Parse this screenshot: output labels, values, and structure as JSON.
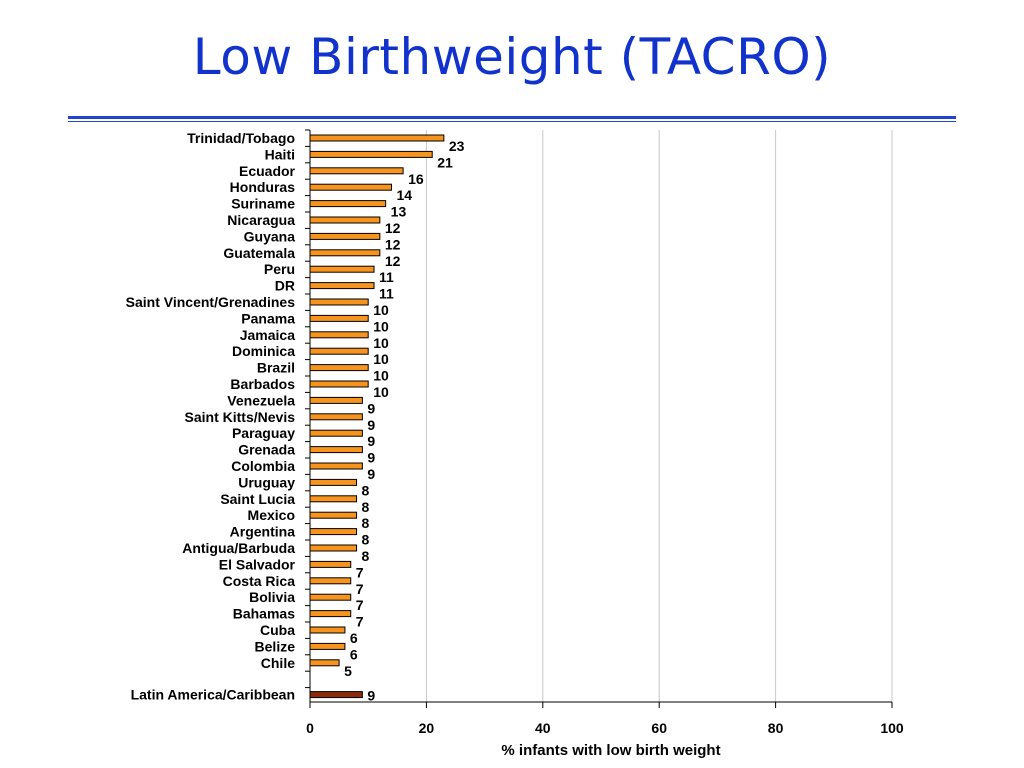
{
  "title": "Low Birthweight (TACRO)",
  "colors": {
    "title": "#1133cc",
    "rule": "#2244cc",
    "bar": "#f7941d",
    "highlight_bar": "#8b2a0a",
    "grid": "#c8c8c8"
  },
  "chart_data": {
    "type": "bar",
    "orientation": "horizontal",
    "categories": [
      "Trinidad/Tobago",
      "Haiti",
      "Ecuador",
      "Honduras",
      "Suriname",
      "Nicaragua",
      "Guyana",
      "Guatemala",
      "Peru",
      "DR",
      "Saint Vincent/Grenadines",
      "Panama",
      "Jamaica",
      "Dominica",
      "Brazil",
      "Barbados",
      "Venezuela",
      "Saint Kitts/Nevis",
      "Paraguay",
      "Grenada",
      "Colombia",
      "Uruguay",
      "Saint Lucia",
      "Mexico",
      "Argentina",
      "Antigua/Barbuda",
      "El Salvador",
      "Costa Rica",
      "Bolivia",
      "Bahamas",
      "Cuba",
      "Belize",
      "Chile"
    ],
    "values": [
      23,
      21,
      16,
      14,
      13,
      12,
      12,
      12,
      11,
      11,
      10,
      10,
      10,
      10,
      10,
      10,
      9,
      9,
      9,
      9,
      9,
      8,
      8,
      8,
      8,
      8,
      7,
      7,
      7,
      7,
      6,
      6,
      5
    ],
    "summary": {
      "category": "Latin America/Caribbean",
      "value": 9
    },
    "value_labels": [
      "23",
      "21",
      "16",
      "14",
      "13",
      "12",
      "12",
      "12",
      "11",
      "11",
      "10",
      "10",
      "10",
      "10",
      "10",
      "10",
      "9",
      "9",
      "9",
      "9",
      "9",
      "8",
      "8",
      "8",
      "8",
      "8",
      "7",
      "7",
      "7",
      "7",
      "6",
      "6",
      "5"
    ],
    "summary_label": "9",
    "xlabel": "% infants with low birth weight",
    "xlim": [
      0,
      100
    ],
    "xticks": [
      0,
      20,
      40,
      60,
      80,
      100
    ],
    "xtick_labels": [
      "0",
      "20",
      "40",
      "60",
      "80",
      "100"
    ],
    "grid": true
  }
}
